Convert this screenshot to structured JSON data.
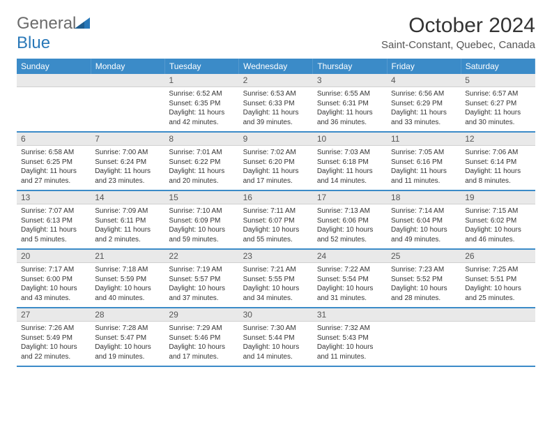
{
  "brand": {
    "part1": "General",
    "part2": "Blue",
    "text_color": "#6b6b6b",
    "accent_color": "#2978b8"
  },
  "header": {
    "title": "October 2024",
    "location": "Saint-Constant, Quebec, Canada"
  },
  "colors": {
    "header_bg": "#3b8bc8",
    "header_text": "#ffffff",
    "daynum_bg": "#e9e9e9",
    "row_divider": "#3b8bc8",
    "body_text": "#333333"
  },
  "weekdays": [
    "Sunday",
    "Monday",
    "Tuesday",
    "Wednesday",
    "Thursday",
    "Friday",
    "Saturday"
  ],
  "weeks": [
    [
      {
        "n": "",
        "sunrise": "",
        "sunset": "",
        "day": ""
      },
      {
        "n": "",
        "sunrise": "",
        "sunset": "",
        "day": ""
      },
      {
        "n": "1",
        "sunrise": "Sunrise: 6:52 AM",
        "sunset": "Sunset: 6:35 PM",
        "day": "Daylight: 11 hours and 42 minutes."
      },
      {
        "n": "2",
        "sunrise": "Sunrise: 6:53 AM",
        "sunset": "Sunset: 6:33 PM",
        "day": "Daylight: 11 hours and 39 minutes."
      },
      {
        "n": "3",
        "sunrise": "Sunrise: 6:55 AM",
        "sunset": "Sunset: 6:31 PM",
        "day": "Daylight: 11 hours and 36 minutes."
      },
      {
        "n": "4",
        "sunrise": "Sunrise: 6:56 AM",
        "sunset": "Sunset: 6:29 PM",
        "day": "Daylight: 11 hours and 33 minutes."
      },
      {
        "n": "5",
        "sunrise": "Sunrise: 6:57 AM",
        "sunset": "Sunset: 6:27 PM",
        "day": "Daylight: 11 hours and 30 minutes."
      }
    ],
    [
      {
        "n": "6",
        "sunrise": "Sunrise: 6:58 AM",
        "sunset": "Sunset: 6:25 PM",
        "day": "Daylight: 11 hours and 27 minutes."
      },
      {
        "n": "7",
        "sunrise": "Sunrise: 7:00 AM",
        "sunset": "Sunset: 6:24 PM",
        "day": "Daylight: 11 hours and 23 minutes."
      },
      {
        "n": "8",
        "sunrise": "Sunrise: 7:01 AM",
        "sunset": "Sunset: 6:22 PM",
        "day": "Daylight: 11 hours and 20 minutes."
      },
      {
        "n": "9",
        "sunrise": "Sunrise: 7:02 AM",
        "sunset": "Sunset: 6:20 PM",
        "day": "Daylight: 11 hours and 17 minutes."
      },
      {
        "n": "10",
        "sunrise": "Sunrise: 7:03 AM",
        "sunset": "Sunset: 6:18 PM",
        "day": "Daylight: 11 hours and 14 minutes."
      },
      {
        "n": "11",
        "sunrise": "Sunrise: 7:05 AM",
        "sunset": "Sunset: 6:16 PM",
        "day": "Daylight: 11 hours and 11 minutes."
      },
      {
        "n": "12",
        "sunrise": "Sunrise: 7:06 AM",
        "sunset": "Sunset: 6:14 PM",
        "day": "Daylight: 11 hours and 8 minutes."
      }
    ],
    [
      {
        "n": "13",
        "sunrise": "Sunrise: 7:07 AM",
        "sunset": "Sunset: 6:13 PM",
        "day": "Daylight: 11 hours and 5 minutes."
      },
      {
        "n": "14",
        "sunrise": "Sunrise: 7:09 AM",
        "sunset": "Sunset: 6:11 PM",
        "day": "Daylight: 11 hours and 2 minutes."
      },
      {
        "n": "15",
        "sunrise": "Sunrise: 7:10 AM",
        "sunset": "Sunset: 6:09 PM",
        "day": "Daylight: 10 hours and 59 minutes."
      },
      {
        "n": "16",
        "sunrise": "Sunrise: 7:11 AM",
        "sunset": "Sunset: 6:07 PM",
        "day": "Daylight: 10 hours and 55 minutes."
      },
      {
        "n": "17",
        "sunrise": "Sunrise: 7:13 AM",
        "sunset": "Sunset: 6:06 PM",
        "day": "Daylight: 10 hours and 52 minutes."
      },
      {
        "n": "18",
        "sunrise": "Sunrise: 7:14 AM",
        "sunset": "Sunset: 6:04 PM",
        "day": "Daylight: 10 hours and 49 minutes."
      },
      {
        "n": "19",
        "sunrise": "Sunrise: 7:15 AM",
        "sunset": "Sunset: 6:02 PM",
        "day": "Daylight: 10 hours and 46 minutes."
      }
    ],
    [
      {
        "n": "20",
        "sunrise": "Sunrise: 7:17 AM",
        "sunset": "Sunset: 6:00 PM",
        "day": "Daylight: 10 hours and 43 minutes."
      },
      {
        "n": "21",
        "sunrise": "Sunrise: 7:18 AM",
        "sunset": "Sunset: 5:59 PM",
        "day": "Daylight: 10 hours and 40 minutes."
      },
      {
        "n": "22",
        "sunrise": "Sunrise: 7:19 AM",
        "sunset": "Sunset: 5:57 PM",
        "day": "Daylight: 10 hours and 37 minutes."
      },
      {
        "n": "23",
        "sunrise": "Sunrise: 7:21 AM",
        "sunset": "Sunset: 5:55 PM",
        "day": "Daylight: 10 hours and 34 minutes."
      },
      {
        "n": "24",
        "sunrise": "Sunrise: 7:22 AM",
        "sunset": "Sunset: 5:54 PM",
        "day": "Daylight: 10 hours and 31 minutes."
      },
      {
        "n": "25",
        "sunrise": "Sunrise: 7:23 AM",
        "sunset": "Sunset: 5:52 PM",
        "day": "Daylight: 10 hours and 28 minutes."
      },
      {
        "n": "26",
        "sunrise": "Sunrise: 7:25 AM",
        "sunset": "Sunset: 5:51 PM",
        "day": "Daylight: 10 hours and 25 minutes."
      }
    ],
    [
      {
        "n": "27",
        "sunrise": "Sunrise: 7:26 AM",
        "sunset": "Sunset: 5:49 PM",
        "day": "Daylight: 10 hours and 22 minutes."
      },
      {
        "n": "28",
        "sunrise": "Sunrise: 7:28 AM",
        "sunset": "Sunset: 5:47 PM",
        "day": "Daylight: 10 hours and 19 minutes."
      },
      {
        "n": "29",
        "sunrise": "Sunrise: 7:29 AM",
        "sunset": "Sunset: 5:46 PM",
        "day": "Daylight: 10 hours and 17 minutes."
      },
      {
        "n": "30",
        "sunrise": "Sunrise: 7:30 AM",
        "sunset": "Sunset: 5:44 PM",
        "day": "Daylight: 10 hours and 14 minutes."
      },
      {
        "n": "31",
        "sunrise": "Sunrise: 7:32 AM",
        "sunset": "Sunset: 5:43 PM",
        "day": "Daylight: 10 hours and 11 minutes."
      },
      {
        "n": "",
        "sunrise": "",
        "sunset": "",
        "day": ""
      },
      {
        "n": "",
        "sunrise": "",
        "sunset": "",
        "day": ""
      }
    ]
  ]
}
